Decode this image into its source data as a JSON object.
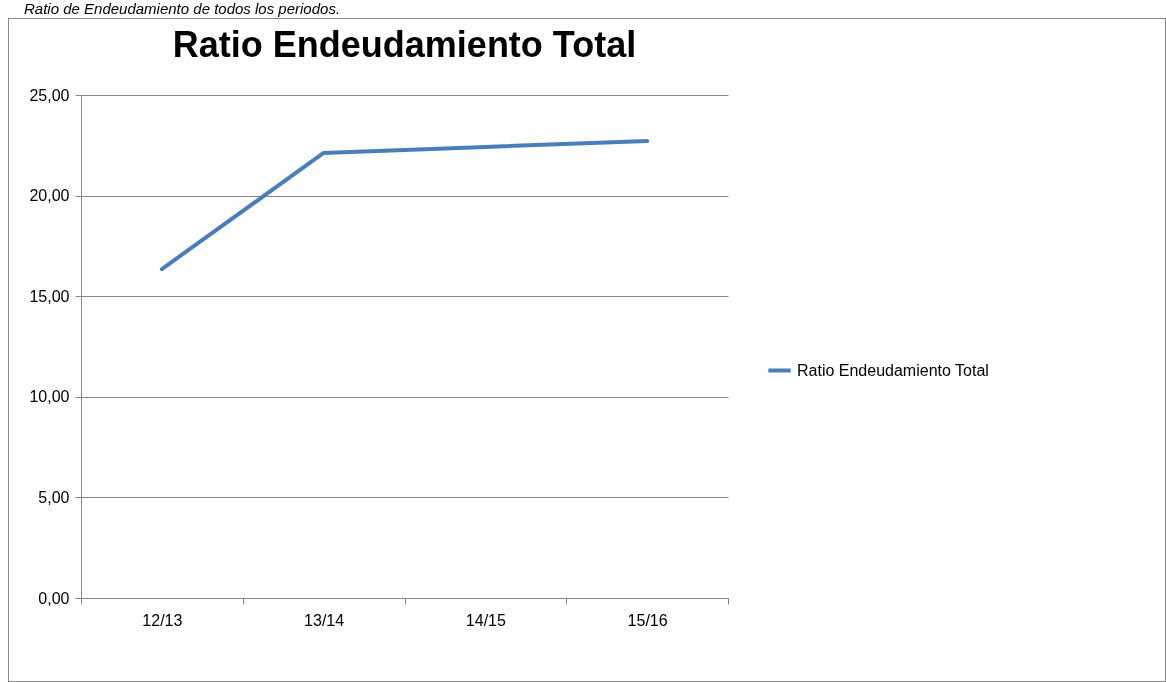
{
  "chart_data": {
    "type": "line",
    "title": "Ratio Endeudamiento Total",
    "annotations": [
      "Ratio de Endeudamiento de todos los periodos."
    ],
    "categories": [
      "12/13",
      "13/14",
      "14/15",
      "15/16"
    ],
    "series": [
      {
        "name": "Ratio Endeudamiento Total",
        "color": "#4a7ebb",
        "values": [
          16.35,
          22.12,
          22.42,
          22.71
        ]
      }
    ],
    "ylim": [
      0,
      25
    ],
    "yticks": [
      {
        "value": 0,
        "label": "0,00"
      },
      {
        "value": 5,
        "label": "5,00"
      },
      {
        "value": 10,
        "label": "10,00"
      },
      {
        "value": 15,
        "label": "15,00"
      },
      {
        "value": 20,
        "label": "20,00"
      },
      {
        "value": 25,
        "label": "25,00"
      }
    ],
    "grid": "y",
    "legend": "right",
    "marker": "none",
    "line_style": "solid"
  }
}
